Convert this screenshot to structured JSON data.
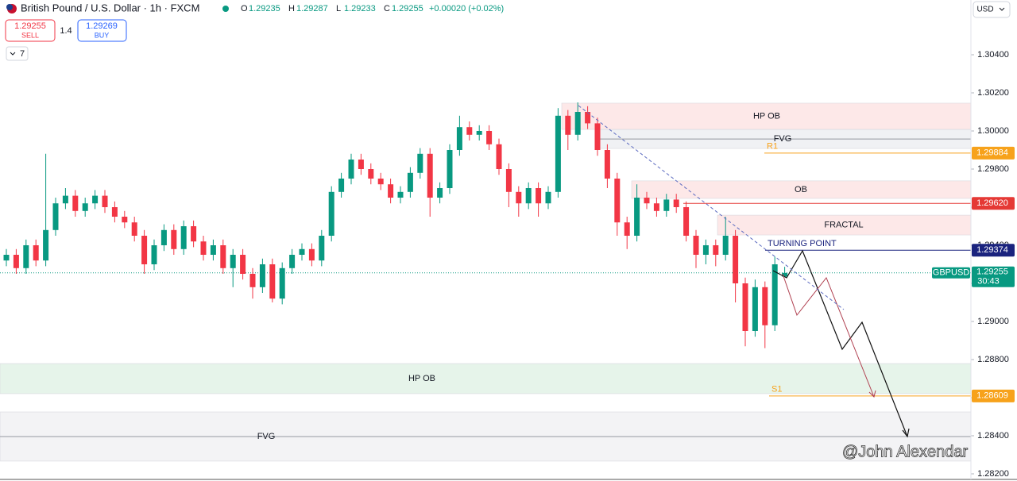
{
  "header": {
    "title": "British Pound / U.S. Dollar · 1h · FXCM",
    "ohlc": [
      {
        "k": "O",
        "v": "1.29235"
      },
      {
        "k": "H",
        "v": "1.29287"
      },
      {
        "k": "L",
        "v": "1.29233"
      },
      {
        "k": "C",
        "v": "1.29255"
      }
    ],
    "change": "+0.00020 (+0.02%)",
    "sell_price": "1.29255",
    "sell": "SELL",
    "spread": "1.4",
    "buy_price": "1.29269",
    "buy": "BUY",
    "indicators": "7",
    "currency": "USD"
  },
  "watermark": "@John Alexendar",
  "chart_data": {
    "type": "candlestick",
    "up_color": "#089981",
    "down_color": "#f23645",
    "open": [
      1.2932,
      1.2935,
      1.2928,
      1.294,
      1.2932,
      1.2948,
      1.2962,
      1.2966,
      1.2958,
      1.2962,
      1.2966,
      1.296,
      1.2955,
      1.2952,
      1.2945,
      1.293,
      1.294,
      1.2948,
      1.2938,
      1.295,
      1.2942,
      1.2935,
      1.294,
      1.2928,
      1.2935,
      1.2925,
      1.2918,
      1.293,
      1.2912,
      1.2928,
      1.2935,
      1.2938,
      1.2932,
      1.2945,
      1.2968,
      1.2975,
      1.2985,
      1.298,
      1.2975,
      1.2972,
      1.2965,
      1.2968,
      1.2978,
      1.2988,
      1.2965,
      1.297,
      1.299,
      1.3002,
      1.2998,
      1.3,
      1.2993,
      1.298,
      1.2968,
      1.2962,
      1.297,
      1.2962,
      1.2968,
      1.3008,
      1.2998,
      1.301,
      1.3004,
      1.299,
      1.2975,
      1.2952,
      1.2945,
      1.2965,
      1.2962,
      1.2958,
      1.2964,
      1.296,
      1.2945,
      1.2935,
      1.294,
      1.2935,
      1.2945,
      1.292,
      1.2895,
      1.2918,
      1.2898,
      1.29235
    ],
    "high": [
      1.2938,
      1.2938,
      1.2943,
      1.2943,
      1.2988,
      1.2965,
      1.297,
      1.2969,
      1.2965,
      1.2969,
      1.2969,
      1.2963,
      1.2958,
      1.2955,
      1.2948,
      1.2943,
      1.2951,
      1.2951,
      1.2953,
      1.2953,
      1.2945,
      1.2943,
      1.2943,
      1.2938,
      1.2938,
      1.2928,
      1.2933,
      1.2933,
      1.2931,
      1.2938,
      1.2941,
      1.2941,
      1.2948,
      1.2971,
      1.2978,
      1.2988,
      1.2988,
      1.2983,
      1.2978,
      1.2975,
      1.2971,
      1.2981,
      1.2991,
      1.2991,
      1.2973,
      1.2993,
      1.3008,
      1.3005,
      1.3003,
      1.3003,
      1.2996,
      1.2983,
      1.2971,
      1.2973,
      1.2973,
      1.2971,
      1.3012,
      1.3011,
      1.3015,
      1.3013,
      1.3007,
      1.2993,
      1.2978,
      1.2955,
      1.2972,
      1.2968,
      1.2965,
      1.2967,
      1.2967,
      1.2963,
      1.2948,
      1.2943,
      1.2943,
      1.2955,
      1.2948,
      1.2923,
      1.2922,
      1.2921,
      1.2934,
      1.29287
    ],
    "low": [
      1.2929,
      1.2925,
      1.2925,
      1.2929,
      1.2929,
      1.2945,
      1.2959,
      1.2955,
      1.2955,
      1.2959,
      1.2957,
      1.2952,
      1.2949,
      1.2942,
      1.2925,
      1.2927,
      1.2937,
      1.2935,
      1.2935,
      1.2939,
      1.2932,
      1.2932,
      1.2925,
      1.2918,
      1.2922,
      1.2912,
      1.2915,
      1.291,
      1.2909,
      1.2925,
      1.2932,
      1.2929,
      1.2929,
      1.2942,
      1.2965,
      1.2972,
      1.2977,
      1.2972,
      1.2969,
      1.2962,
      1.2962,
      1.2965,
      1.2975,
      1.2955,
      1.2962,
      1.2967,
      1.2987,
      1.2995,
      1.2995,
      1.299,
      1.2977,
      1.296,
      1.2955,
      1.2959,
      1.2955,
      1.2959,
      1.2965,
      1.299,
      1.2995,
      1.3001,
      1.2987,
      1.297,
      1.2945,
      1.2938,
      1.2942,
      1.2959,
      1.2955,
      1.2955,
      1.2957,
      1.2942,
      1.2928,
      1.293,
      1.2929,
      1.2932,
      1.291,
      1.2887,
      1.2892,
      1.2886,
      1.2895,
      1.29233
    ],
    "close": [
      1.2935,
      1.2928,
      1.294,
      1.2932,
      1.2948,
      1.2962,
      1.2966,
      1.2958,
      1.2962,
      1.2966,
      1.296,
      1.2955,
      1.2952,
      1.2945,
      1.293,
      1.294,
      1.2948,
      1.2938,
      1.295,
      1.2942,
      1.2935,
      1.294,
      1.2928,
      1.2935,
      1.2925,
      1.2918,
      1.293,
      1.2912,
      1.2928,
      1.2935,
      1.2938,
      1.2932,
      1.2945,
      1.2968,
      1.2975,
      1.2985,
      1.298,
      1.2975,
      1.2972,
      1.2965,
      1.2968,
      1.2978,
      1.2988,
      1.2965,
      1.297,
      1.299,
      1.3002,
      1.2998,
      1.3,
      1.2993,
      1.298,
      1.2968,
      1.2962,
      1.297,
      1.2962,
      1.2968,
      1.3008,
      1.2998,
      1.301,
      1.3004,
      1.299,
      1.2975,
      1.2952,
      1.2945,
      1.2965,
      1.2962,
      1.2958,
      1.2964,
      1.296,
      1.2945,
      1.2935,
      1.294,
      1.2935,
      1.2945,
      1.292,
      1.2895,
      1.2918,
      1.2898,
      1.293,
      1.29255
    ],
    "ylim": [
      1.281625,
      1.306875
    ],
    "yticks": [
      {
        "value": 1.282,
        "label": "1.28200"
      },
      {
        "value": 1.284,
        "label": "1.28400"
      },
      {
        "value": 1.286,
        "label": "1.28600"
      },
      {
        "value": 1.288,
        "label": "1.28800"
      },
      {
        "value": 1.29,
        "label": "1.29000"
      },
      {
        "value": 1.292,
        "label": "1.29200"
      },
      {
        "value": 1.294,
        "label": "1.29400"
      },
      {
        "value": 1.296,
        "label": "1.29600"
      },
      {
        "value": 1.298,
        "label": "1.29800"
      },
      {
        "value": 1.3,
        "label": "1.30000"
      },
      {
        "value": 1.302,
        "label": "1.30200"
      },
      {
        "value": 1.304,
        "label": "1.30400"
      }
    ],
    "zones": [
      {
        "label": "HP OB",
        "from": 1.30008,
        "to": 1.30146,
        "color": "#fde8e8"
      },
      {
        "label": "FVG",
        "from": 1.29908,
        "to": 1.30008,
        "color": "#f0f1f4"
      },
      {
        "label": "OB",
        "from": 1.29646,
        "to": 1.29738,
        "color": "#fde8e8"
      },
      {
        "label": "FRACTAL",
        "from": 1.29454,
        "to": 1.29558,
        "color": "#fde8e8"
      },
      {
        "label": "HP OB",
        "from": 1.28621,
        "to": 1.28779,
        "color": "#e6f4ea"
      },
      {
        "label": "FVG",
        "from": 1.28267,
        "to": 1.28525,
        "color": "#f3f3f5"
      }
    ],
    "levels": [
      {
        "value": 1.29884,
        "label": "1.29884",
        "name": "R1",
        "color": "#f7a21b"
      },
      {
        "value": 1.2962,
        "label": "1.29620",
        "color": "#e53935"
      },
      {
        "value": 1.29374,
        "label": "1.29374",
        "name": "TURNING POINT",
        "color": "#1a237e"
      },
      {
        "value": 1.28609,
        "label": "1.28609",
        "name": "S1",
        "color": "#f7a21b"
      }
    ],
    "last_price": {
      "symbol": "GBPUSD",
      "value": 1.29255,
      "label": "1.29255",
      "countdown": "30:43",
      "color": "#089981"
    }
  }
}
